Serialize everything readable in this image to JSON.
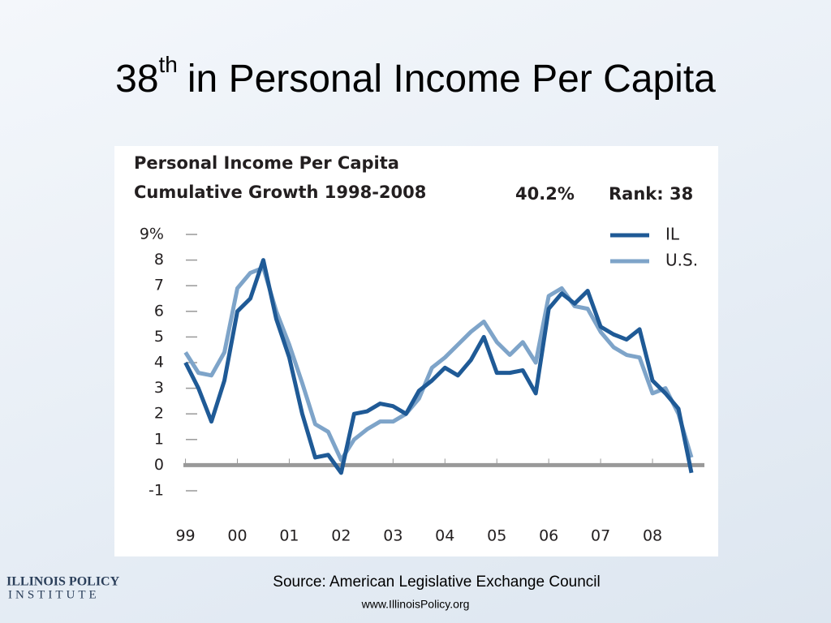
{
  "slide": {
    "title": {
      "number": "38",
      "suffix": "th",
      "rest": "in Personal Income Per Capita"
    },
    "source": "Source: American Legislative Exchange Council",
    "url": "www.IllinoisPolicy.org",
    "logo": [
      "ILLINOIS POLICY",
      "INSTITUTE"
    ]
  },
  "chart_data": {
    "type": "line",
    "title": [
      "Personal Income Per Capita",
      "Cumulative Growth 1998-2008"
    ],
    "annotations": [
      "40.2%",
      "Rank: 38"
    ],
    "x": [
      1999,
      1999.25,
      1999.5,
      1999.75,
      2000,
      2000.25,
      2000.5,
      2000.75,
      2001,
      2001.25,
      2001.5,
      2001.75,
      2002,
      2002.25,
      2002.5,
      2002.75,
      2003,
      2003.25,
      2003.5,
      2003.75,
      2004,
      2004.25,
      2004.5,
      2004.75,
      2005,
      2005.25,
      2005.5,
      2005.75,
      2006,
      2006.25,
      2006.5,
      2006.75,
      2007,
      2007.25,
      2007.5,
      2007.75,
      2008,
      2008.25,
      2008.5,
      2008.75
    ],
    "series": [
      {
        "name": "IL",
        "color": "#1f5a96",
        "values": [
          4.0,
          3.0,
          1.7,
          3.3,
          6.0,
          6.5,
          8.0,
          5.7,
          4.2,
          2.0,
          0.3,
          0.4,
          -0.3,
          2.0,
          2.1,
          2.4,
          2.3,
          2.0,
          2.9,
          3.3,
          3.8,
          3.5,
          4.1,
          5.0,
          3.6,
          3.6,
          3.7,
          2.8,
          6.1,
          6.7,
          6.3,
          6.8,
          5.4,
          5.1,
          4.9,
          5.3,
          3.3,
          2.8,
          2.2,
          -0.3
        ]
      },
      {
        "name": "U.S.",
        "color": "#7ea4c9",
        "values": [
          4.4,
          3.6,
          3.5,
          4.4,
          6.9,
          7.5,
          7.7,
          6.0,
          4.7,
          3.2,
          1.6,
          1.3,
          0.2,
          1.0,
          1.4,
          1.7,
          1.7,
          2.0,
          2.6,
          3.8,
          4.2,
          4.7,
          5.2,
          5.6,
          4.8,
          4.3,
          4.8,
          4.0,
          6.6,
          6.9,
          6.2,
          6.1,
          5.2,
          4.6,
          4.3,
          4.2,
          2.8,
          3.0,
          2.0,
          0.3
        ]
      }
    ],
    "xlim": [
      1998.96,
      2009.0
    ],
    "xticks": [
      {
        "value": 1999,
        "label": "99"
      },
      {
        "value": 2000,
        "label": "00"
      },
      {
        "value": 2001,
        "label": "01"
      },
      {
        "value": 2002,
        "label": "02"
      },
      {
        "value": 2003,
        "label": "03"
      },
      {
        "value": 2004,
        "label": "04"
      },
      {
        "value": 2005,
        "label": "05"
      },
      {
        "value": 2006,
        "label": "06"
      },
      {
        "value": 2007,
        "label": "07"
      },
      {
        "value": 2008,
        "label": "08"
      }
    ],
    "ylim": [
      -1,
      9
    ],
    "yticks": [
      {
        "value": 9,
        "label": "9%"
      },
      8,
      7,
      6,
      5,
      4,
      3,
      2,
      1,
      0,
      -1
    ],
    "legend": "top-right"
  }
}
